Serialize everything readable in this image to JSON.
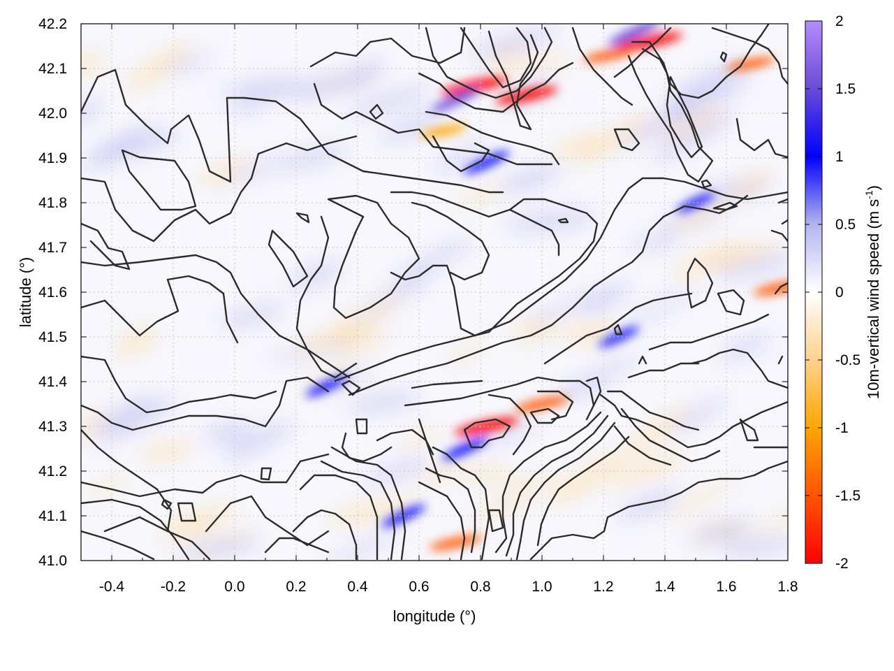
{
  "chart_data": {
    "type": "heatmap",
    "title": "",
    "xlabel": "longitude (°)",
    "ylabel": "latitude (°)",
    "colorbar_label": "10m-vertical wind speed (m s",
    "colorbar_label_sup": "-1",
    "colorbar_label_end": ")",
    "xlim": [
      -0.5,
      1.8
    ],
    "ylim": [
      41.0,
      42.2
    ],
    "clim": [
      -2,
      2
    ],
    "x_ticks": [
      -0.4,
      -0.2,
      0.0,
      0.2,
      0.4,
      0.6,
      0.8,
      1.0,
      1.2,
      1.4,
      1.6,
      1.8
    ],
    "x_tick_labels": [
      "-0.4",
      "-0.2",
      "0.0",
      "0.2",
      "0.4",
      "0.6",
      "0.8",
      "1.0",
      "1.2",
      "1.4",
      "1.6",
      "1.8"
    ],
    "y_ticks": [
      41.0,
      41.1,
      41.2,
      41.3,
      41.4,
      41.5,
      41.6,
      41.7,
      41.8,
      41.9,
      42.0,
      42.1,
      42.2
    ],
    "y_tick_labels": [
      "41.0",
      "41.1",
      "41.2",
      "41.3",
      "41.4",
      "41.5",
      "41.6",
      "41.7",
      "41.8",
      "41.9",
      "42.0",
      "42.1",
      "42.2"
    ],
    "colorbar_ticks": [
      2,
      1.5,
      1,
      0.5,
      0,
      -0.5,
      -1,
      -1.5,
      -2
    ],
    "colorbar_tick_labels": [
      "2",
      "1.5",
      "1",
      "0.5",
      "0",
      "-0.5",
      "-1",
      "-1.5",
      "-2"
    ],
    "colormap": [
      {
        "value": -2.0,
        "color": "#ff0000"
      },
      {
        "value": -1.5,
        "color": "#ff5500"
      },
      {
        "value": -1.0,
        "color": "#ffa500"
      },
      {
        "value": -0.5,
        "color": "#ffd28c"
      },
      {
        "value": 0.0,
        "color": "#ffffff"
      },
      {
        "value": 0.5,
        "color": "#b4b4f0"
      },
      {
        "value": 1.0,
        "color": "#0000ff"
      },
      {
        "value": 1.5,
        "color": "#6a4ad6"
      },
      {
        "value": 2.0,
        "color": "#b48cff"
      }
    ],
    "grid": true,
    "features": [
      {
        "kind": "updraft",
        "lon": 0.78,
        "lat": 42.06,
        "value": -1.9
      },
      {
        "kind": "updraft",
        "lon": 0.95,
        "lat": 42.04,
        "value": -1.7
      },
      {
        "kind": "updraft",
        "lon": 1.35,
        "lat": 42.16,
        "value": -1.9
      },
      {
        "kind": "updraft",
        "lon": 1.22,
        "lat": 42.13,
        "value": -1.2
      },
      {
        "kind": "updraft",
        "lon": 1.68,
        "lat": 42.11,
        "value": -1.0
      },
      {
        "kind": "updraft",
        "lon": 0.82,
        "lat": 41.3,
        "value": -1.8
      },
      {
        "kind": "updraft",
        "lon": 1.0,
        "lat": 41.35,
        "value": -1.3
      },
      {
        "kind": "updraft",
        "lon": 0.72,
        "lat": 41.04,
        "value": -1.2
      },
      {
        "kind": "updraft",
        "lon": 1.78,
        "lat": 41.61,
        "value": -1.4
      },
      {
        "kind": "updraft",
        "lon": 0.68,
        "lat": 41.96,
        "value": -0.9
      },
      {
        "kind": "downdraft",
        "lon": 0.72,
        "lat": 42.03,
        "value": 1.2
      },
      {
        "kind": "downdraft",
        "lon": 1.3,
        "lat": 42.18,
        "value": 1.4
      },
      {
        "kind": "downdraft",
        "lon": 0.82,
        "lat": 41.89,
        "value": 1.0
      },
      {
        "kind": "downdraft",
        "lon": 0.75,
        "lat": 41.25,
        "value": 1.0
      },
      {
        "kind": "downdraft",
        "lon": 0.55,
        "lat": 41.1,
        "value": 0.9
      },
      {
        "kind": "downdraft",
        "lon": 0.3,
        "lat": 41.39,
        "value": 0.8
      },
      {
        "kind": "downdraft",
        "lon": 1.25,
        "lat": 41.5,
        "value": 0.7
      },
      {
        "kind": "downdraft",
        "lon": 1.5,
        "lat": 41.8,
        "value": 0.6
      }
    ]
  }
}
